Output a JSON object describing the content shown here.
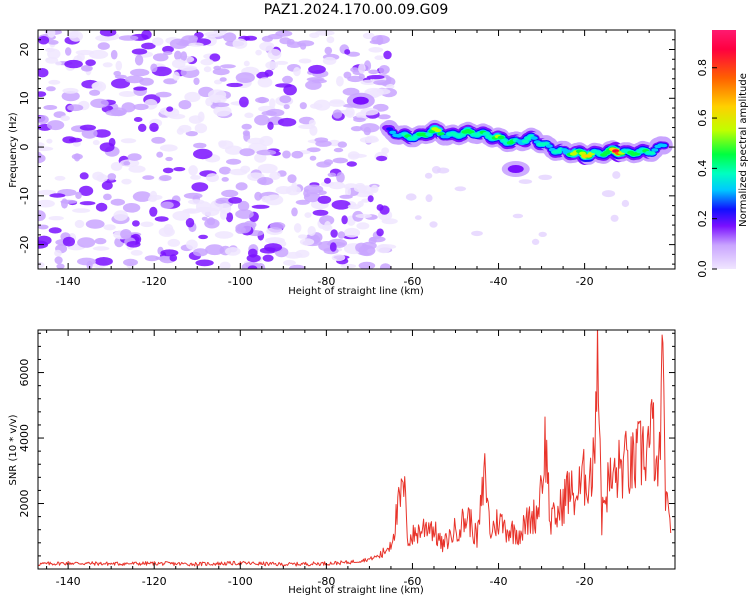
{
  "title": "PAZ1.2024.170.00.09.G09",
  "chart_data": [
    {
      "type": "heatmap",
      "xlabel": "Height of straight line (km)",
      "ylabel": "Frequency (Hz)",
      "xlim": [
        -147,
        1
      ],
      "ylim": [
        -25,
        24
      ],
      "x_ticks": [
        -140,
        -120,
        -100,
        -80,
        -60,
        -40,
        -20
      ],
      "y_ticks": [
        -20,
        -10,
        0,
        10,
        20
      ],
      "colorbar": {
        "label": "Normalized spectral amplitude",
        "range": [
          0.0,
          0.95
        ],
        "ticks": [
          "0.0",
          "0.2",
          "0.4",
          "0.6",
          "0.8"
        ],
        "tick_values": [
          0.0,
          0.2,
          0.4,
          0.6,
          0.8
        ],
        "colors": [
          "#f0e6ff",
          "#c9a4ff",
          "#7a10ff",
          "#1010ff",
          "#00c8ff",
          "#00ffc0",
          "#00ff40",
          "#c0ff00",
          "#ffd000",
          "#ff6000",
          "#ff0040"
        ]
      },
      "noise_region": {
        "x_range": [
          -147,
          -65
        ],
        "y_range": [
          -25,
          24
        ],
        "amplitude_range": [
          0.02,
          0.22
        ]
      },
      "signal_track": [
        {
          "x": -66,
          "y": 3.5,
          "amplitude": 0.22
        },
        {
          "x": -62,
          "y": 2.5,
          "amplitude": 0.45
        },
        {
          "x": -58,
          "y": 2.0,
          "amplitude": 0.5
        },
        {
          "x": -55,
          "y": 3.2,
          "amplitude": 0.6
        },
        {
          "x": -52,
          "y": 2.5,
          "amplitude": 0.4
        },
        {
          "x": -48,
          "y": 3.0,
          "amplitude": 0.55
        },
        {
          "x": -44,
          "y": 2.4,
          "amplitude": 0.45
        },
        {
          "x": -40,
          "y": 2.0,
          "amplitude": 0.55
        },
        {
          "x": -36,
          "y": 1.0,
          "amplitude": 0.45
        },
        {
          "x": -32,
          "y": 1.5,
          "amplitude": 0.45
        },
        {
          "x": -28,
          "y": 0.0,
          "amplitude": 0.4
        },
        {
          "x": -24,
          "y": -1.0,
          "amplitude": 0.45
        },
        {
          "x": -20,
          "y": -1.8,
          "amplitude": 0.75
        },
        {
          "x": -16,
          "y": -1.0,
          "amplitude": 0.4
        },
        {
          "x": -13,
          "y": -0.5,
          "amplitude": 0.85
        },
        {
          "x": -10,
          "y": -1.5,
          "amplitude": 0.5
        },
        {
          "x": -7,
          "y": -1.2,
          "amplitude": 0.55
        },
        {
          "x": -4,
          "y": -0.5,
          "amplitude": 0.4
        },
        {
          "x": -1,
          "y": 1.0,
          "amplitude": 0.3
        }
      ],
      "secondary_blobs": [
        {
          "x": -36,
          "y": -4.5,
          "amplitude": 0.2
        },
        {
          "x": -72,
          "y": 9.5,
          "amplitude": 0.15
        }
      ]
    },
    {
      "type": "line",
      "xlabel": "Height of straight line (km)",
      "ylabel": "SNR (10 * v/v)",
      "xlim": [
        -147,
        1
      ],
      "ylim": [
        0,
        7300
      ],
      "x_ticks": [
        -140,
        -120,
        -100,
        -80,
        -60,
        -40,
        -20
      ],
      "y_ticks": [
        2000,
        4000,
        6000
      ],
      "series": [
        {
          "color": "#e8332a",
          "x": [
            -147,
            -140,
            -130,
            -120,
            -110,
            -100,
            -90,
            -80,
            -75,
            -70,
            -67,
            -65,
            -63,
            -62,
            -61,
            -59,
            -56,
            -53,
            -50,
            -47,
            -45,
            -43,
            -42,
            -40,
            -38,
            -35,
            -33,
            -31,
            -29,
            -28,
            -26,
            -24,
            -22,
            -20,
            -18,
            -17,
            -16,
            -15,
            -13,
            -11,
            -9,
            -7,
            -5,
            -4,
            -3,
            -2,
            -1,
            0
          ],
          "values": [
            150,
            180,
            160,
            170,
            150,
            180,
            140,
            170,
            200,
            300,
            450,
            800,
            2000,
            2500,
            900,
            1100,
            1400,
            700,
            1200,
            1600,
            900,
            3000,
            1100,
            1500,
            1200,
            1100,
            1500,
            1700,
            3900,
            1400,
            1700,
            2400,
            2200,
            2800,
            3000,
            7300,
            1500,
            2500,
            2800,
            3200,
            3100,
            3500,
            3800,
            4200,
            2200,
            6000,
            1900,
            1100
          ]
        }
      ]
    }
  ]
}
